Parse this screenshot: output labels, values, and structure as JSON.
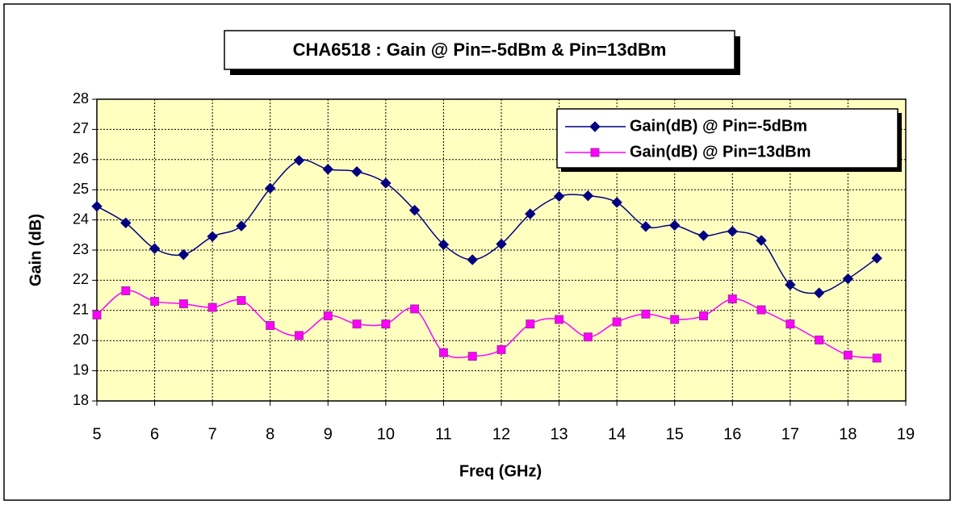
{
  "chart_data": {
    "type": "line",
    "title": "CHA6518 : Gain @ Pin=-5dBm & Pin=13dBm",
    "xlabel": "Freq (GHz)",
    "ylabel": "Gain (dB)",
    "x": [
      5,
      5.5,
      6,
      6.5,
      7,
      7.5,
      8,
      8.5,
      9,
      9.5,
      10,
      10.5,
      11,
      11.5,
      12,
      12.5,
      13,
      13.5,
      14,
      14.5,
      15,
      15.5,
      16,
      16.5,
      17,
      17.5,
      18,
      18.5
    ],
    "series": [
      {
        "name": "Gain(dB) @ Pin=-5dBm",
        "color": "#000080",
        "marker": "diamond",
        "values": [
          24.45,
          23.9,
          23.05,
          22.85,
          23.45,
          23.8,
          25.05,
          25.97,
          25.68,
          25.6,
          25.22,
          24.32,
          23.18,
          22.68,
          23.2,
          24.2,
          24.78,
          24.8,
          24.58,
          23.78,
          23.82,
          23.48,
          23.62,
          23.32,
          21.85,
          21.58,
          22.05,
          22.73
        ]
      },
      {
        "name": "Gain(dB) @ Pin=13dBm",
        "color": "#ff00ff",
        "marker": "square",
        "values": [
          20.85,
          21.65,
          21.3,
          21.22,
          21.1,
          21.33,
          20.5,
          20.17,
          20.82,
          20.55,
          20.55,
          21.05,
          19.6,
          19.48,
          19.7,
          20.55,
          20.7,
          20.12,
          20.62,
          20.88,
          20.7,
          20.82,
          21.38,
          21.02,
          20.55,
          20.02,
          19.52,
          19.42
        ]
      }
    ],
    "xlim": [
      5,
      19
    ],
    "xticks": [
      5,
      6,
      7,
      8,
      9,
      10,
      11,
      12,
      13,
      14,
      15,
      16,
      17,
      18,
      19
    ],
    "ylim": [
      18,
      28
    ],
    "yticks": [
      18,
      19,
      20,
      21,
      22,
      23,
      24,
      25,
      26,
      27,
      28
    ],
    "grid": true,
    "smooth": true,
    "legend": "upper right",
    "plot_background": "#ffffc0"
  }
}
